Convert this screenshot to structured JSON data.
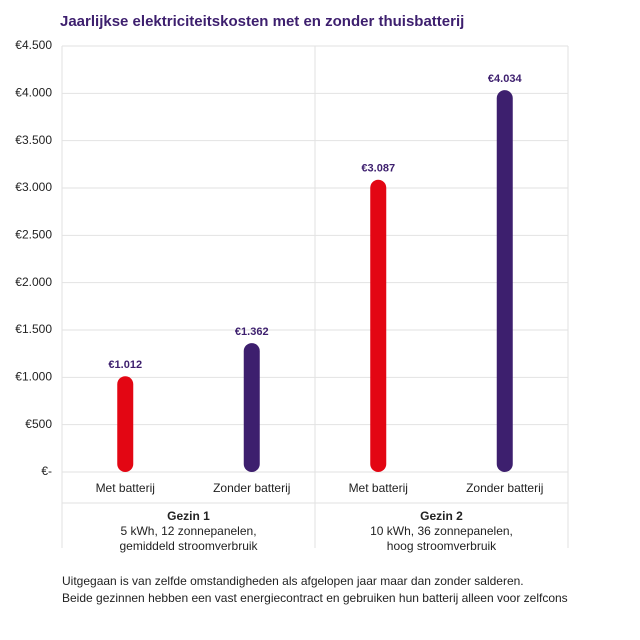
{
  "chart_data": {
    "type": "bar",
    "title": "Jaarlijkse elektriciteitskosten met en zonder thuisbatterij",
    "categories": [
      "Met batterij",
      "Zonder batterij",
      "Met batterij",
      "Zonder batterij"
    ],
    "values": [
      1012,
      1362,
      3087,
      4034
    ],
    "value_labels": [
      "€1.012",
      "€1.362",
      "€3.087",
      "€4.034"
    ],
    "colors": [
      "#e30613",
      "#3d1f6e",
      "#e30613",
      "#3d1f6e"
    ],
    "groups": [
      {
        "name": "Gezin 1",
        "description": [
          "5 kWh, 12 zonnepanelen,",
          "gemiddeld stroomverbruik"
        ]
      },
      {
        "name": "Gezin 2",
        "description": [
          "10 kWh, 36 zonnepanelen,",
          "hoog stroomverbruik"
        ]
      }
    ],
    "ylim": [
      0,
      4500
    ],
    "yticks": [
      {
        "value": 0,
        "label": "€-"
      },
      {
        "value": 500,
        "label": "€500"
      },
      {
        "value": 1000,
        "label": "€1.000"
      },
      {
        "value": 1500,
        "label": "€1.500"
      },
      {
        "value": 2000,
        "label": "€2.000"
      },
      {
        "value": 2500,
        "label": "€2.500"
      },
      {
        "value": 3000,
        "label": "€3.000"
      },
      {
        "value": 3500,
        "label": "€3.500"
      },
      {
        "value": 4000,
        "label": "€4.000"
      },
      {
        "value": 4500,
        "label": "€4.500"
      }
    ],
    "grid": true,
    "notes": [
      "Uitgegaan is van zelfde omstandigheden als afgelopen jaar maar dan zonder salderen.",
      "Beide gezinnen hebben een vast energiecontract en gebruiken hun batterij alleen voor zelfcons"
    ]
  }
}
